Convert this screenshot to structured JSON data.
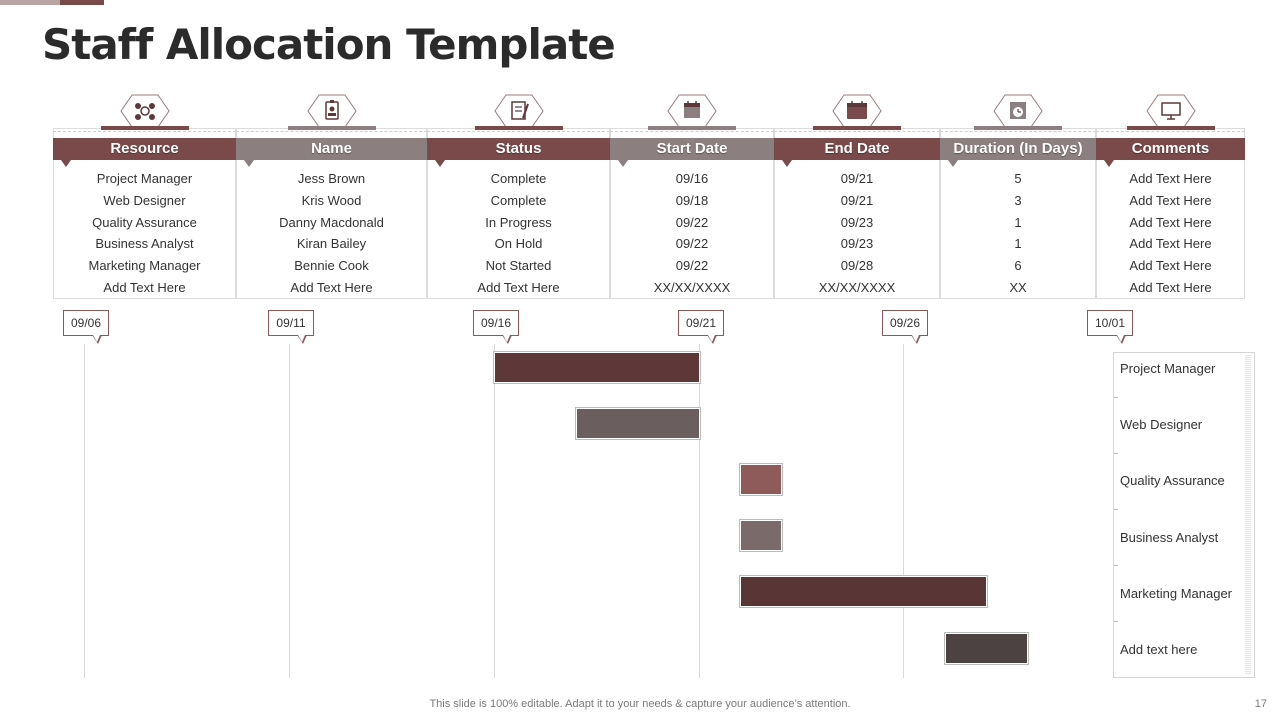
{
  "slide": {
    "title": "Staff Allocation Template",
    "footer": "This slide is 100% editable. Adapt it to your needs & capture your audience’s attention.",
    "page_number": "17"
  },
  "colors": {
    "dark": "#5e3838",
    "maroon": "#7a4a4a",
    "rose": "#8f5a5a",
    "gray": "#8c7f7f",
    "taupe": "#6b5e5e",
    "charcoal": "#4d4242"
  },
  "table": {
    "columns": [
      {
        "header": "Resource",
        "icon": "team-icon",
        "cells": [
          "Project Manager",
          "Web Designer",
          "Quality Assurance",
          "Business Analyst",
          "Marketing Manager",
          "Add Text Here"
        ]
      },
      {
        "header": "Name",
        "icon": "badge-icon",
        "cells": [
          "Jess Brown",
          "Kris Wood",
          "Danny Macdonald",
          "Kiran Bailey",
          "Bennie Cook",
          "Add Text Here"
        ]
      },
      {
        "header": "Status",
        "icon": "clipboard-icon",
        "cells": [
          "Complete",
          "Complete",
          "In Progress",
          "On Hold",
          "Not Started",
          "Add Text Here"
        ]
      },
      {
        "header": "Start Date",
        "icon": "calendar-start-icon",
        "cells": [
          "09/16",
          "09/18",
          "09/22",
          "09/22",
          "09/22",
          "XX/XX/XXXX"
        ]
      },
      {
        "header": "End Date",
        "icon": "calendar-end-icon",
        "cells": [
          "09/21",
          "09/21",
          "09/23",
          "09/23",
          "09/28",
          "XX/XX/XXXX"
        ]
      },
      {
        "header": "Duration (In Days)",
        "icon": "clock-icon",
        "cells": [
          "5",
          "3",
          "1",
          "1",
          "6",
          "XX"
        ]
      },
      {
        "header": "Comments",
        "icon": "monitor-icon",
        "cells": [
          "Add Text Here",
          "Add Text Here",
          "Add Text Here",
          "Add Text Here",
          "Add Text Here",
          "Add Text Here"
        ]
      }
    ]
  },
  "gantt": {
    "dates": [
      "09/06",
      "09/11",
      "09/16",
      "09/21",
      "09/26",
      "10/01"
    ],
    "legend": [
      "Project Manager",
      "Web Designer",
      "Quality Assurance",
      "Business Analyst",
      "Marketing Manager",
      "Add text here"
    ]
  }
}
